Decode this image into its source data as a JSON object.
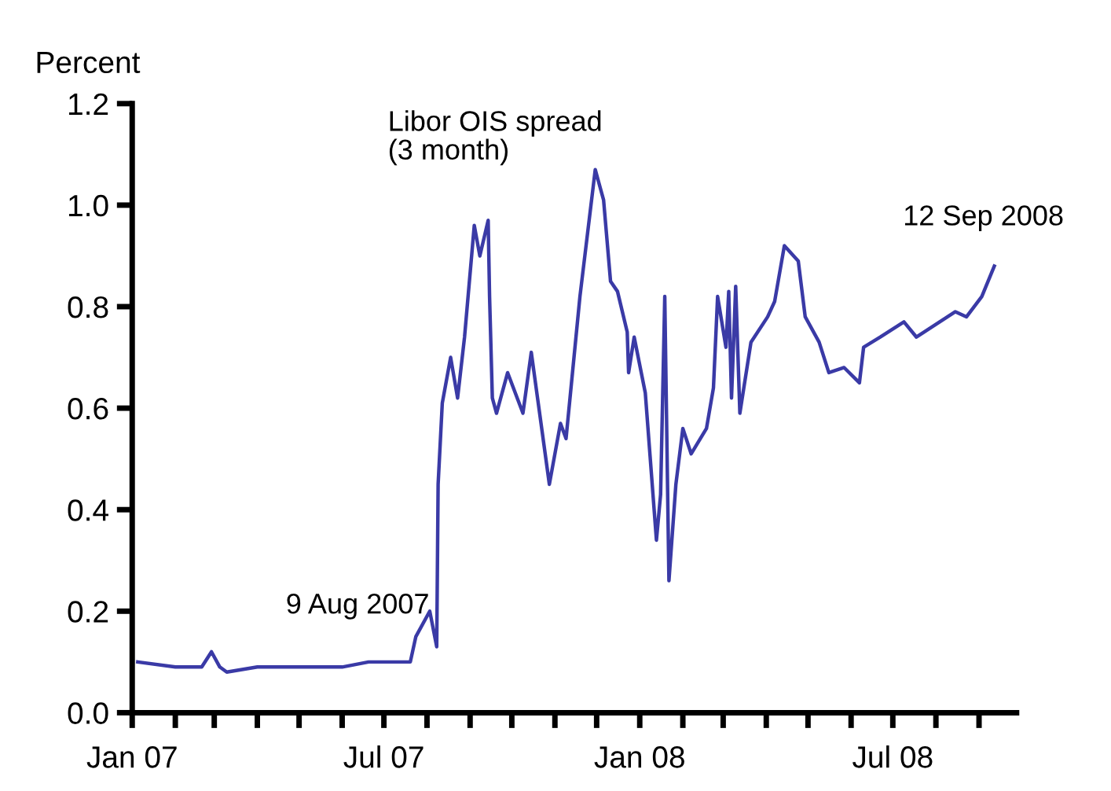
{
  "chart_data": {
    "type": "line",
    "ylabel": "Percent",
    "xlim": [
      "2007-01-01",
      "2008-09-28"
    ],
    "ylim": [
      0,
      1.2
    ],
    "yticks": [
      {
        "value": 0,
        "label": "0.0"
      },
      0.2,
      0.4,
      0.6,
      0.8,
      {
        "value": 1,
        "label": "1.0"
      },
      1.2
    ],
    "xticks": [
      {
        "value": "2007-01-01",
        "label": "Jan 07"
      },
      {
        "value": "2007-02-01",
        "label": null
      },
      {
        "value": "2007-03-01",
        "label": null
      },
      {
        "value": "2007-04-01",
        "label": null
      },
      {
        "value": "2007-05-01",
        "label": null
      },
      {
        "value": "2007-06-01",
        "label": null
      },
      {
        "value": "2007-07-01",
        "label": "Jul 07"
      },
      {
        "value": "2007-08-01",
        "label": null
      },
      {
        "value": "2007-09-01",
        "label": null
      },
      {
        "value": "2007-10-01",
        "label": null
      },
      {
        "value": "2007-11-01",
        "label": null
      },
      {
        "value": "2007-12-01",
        "label": null
      },
      {
        "value": "2008-01-01",
        "label": "Jan 08"
      },
      {
        "value": "2008-02-01",
        "label": null
      },
      {
        "value": "2008-03-01",
        "label": null
      },
      {
        "value": "2008-04-01",
        "label": null
      },
      {
        "value": "2008-05-01",
        "label": null
      },
      {
        "value": "2008-06-01",
        "label": null
      },
      {
        "value": "2008-07-01",
        "label": "Jul 08"
      },
      {
        "value": "2008-08-01",
        "label": null
      },
      {
        "value": "2008-09-01",
        "label": null
      }
    ],
    "grid": false,
    "legend": false,
    "marker": "none",
    "line_style": "solid",
    "annotations": [
      {
        "text": "9 Aug 2007",
        "x": "2007-08-09",
        "y": 0.21
      },
      {
        "text": "12 Sep 2008",
        "x": "2008-09-12",
        "y": 0.88
      }
    ],
    "series": [
      {
        "name": "Libor OIS spread\n(3 month)",
        "color": "#3a3aa6",
        "x": [
          "2007-01-05",
          "2007-02-01",
          "2007-02-20",
          "2007-02-27",
          "2007-03-05",
          "2007-03-10",
          "2007-04-01",
          "2007-05-01",
          "2007-06-01",
          "2007-06-20",
          "2007-07-20",
          "2007-07-24",
          "2007-08-03",
          "2007-08-08",
          "2007-08-09",
          "2007-08-12",
          "2007-08-18",
          "2007-08-23",
          "2007-08-28",
          "2007-09-04",
          "2007-09-08",
          "2007-09-14",
          "2007-09-15",
          "2007-09-17",
          "2007-09-20",
          "2007-09-28",
          "2007-10-09",
          "2007-10-15",
          "2007-10-28",
          "2007-11-05",
          "2007-11-09",
          "2007-11-19",
          "2007-11-30",
          "2007-12-06",
          "2007-12-11",
          "2007-12-16",
          "2007-12-23",
          "2007-12-24",
          "2007-12-28",
          "2008-01-05",
          "2008-01-13",
          "2008-01-16",
          "2008-01-19",
          "2008-01-22",
          "2008-01-27",
          "2008-02-01",
          "2008-02-07",
          "2008-02-18",
          "2008-02-23",
          "2008-02-26",
          "2008-03-03",
          "2008-03-05",
          "2008-03-07",
          "2008-03-10",
          "2008-03-13",
          "2008-03-21",
          "2008-04-02",
          "2008-04-07",
          "2008-04-14",
          "2008-04-24",
          "2008-04-29",
          "2008-05-09",
          "2008-05-16",
          "2008-05-27",
          "2008-06-07",
          "2008-06-10",
          "2008-06-22",
          "2008-07-09",
          "2008-07-18",
          "2008-08-15",
          "2008-08-23",
          "2008-09-03",
          "2008-09-12"
        ],
        "values": [
          0.1,
          0.09,
          0.09,
          0.12,
          0.09,
          0.08,
          0.09,
          0.09,
          0.09,
          0.1,
          0.1,
          0.15,
          0.2,
          0.13,
          0.45,
          0.61,
          0.7,
          0.62,
          0.74,
          0.96,
          0.9,
          0.97,
          0.82,
          0.62,
          0.59,
          0.67,
          0.59,
          0.71,
          0.45,
          0.57,
          0.54,
          0.82,
          1.07,
          1.01,
          0.85,
          0.83,
          0.75,
          0.67,
          0.74,
          0.63,
          0.34,
          0.43,
          0.82,
          0.26,
          0.45,
          0.56,
          0.51,
          0.56,
          0.64,
          0.82,
          0.72,
          0.83,
          0.62,
          0.84,
          0.59,
          0.73,
          0.78,
          0.81,
          0.92,
          0.89,
          0.78,
          0.73,
          0.67,
          0.68,
          0.65,
          0.72,
          0.74,
          0.77,
          0.74,
          0.79,
          0.78,
          0.82,
          0.88
        ]
      }
    ]
  }
}
